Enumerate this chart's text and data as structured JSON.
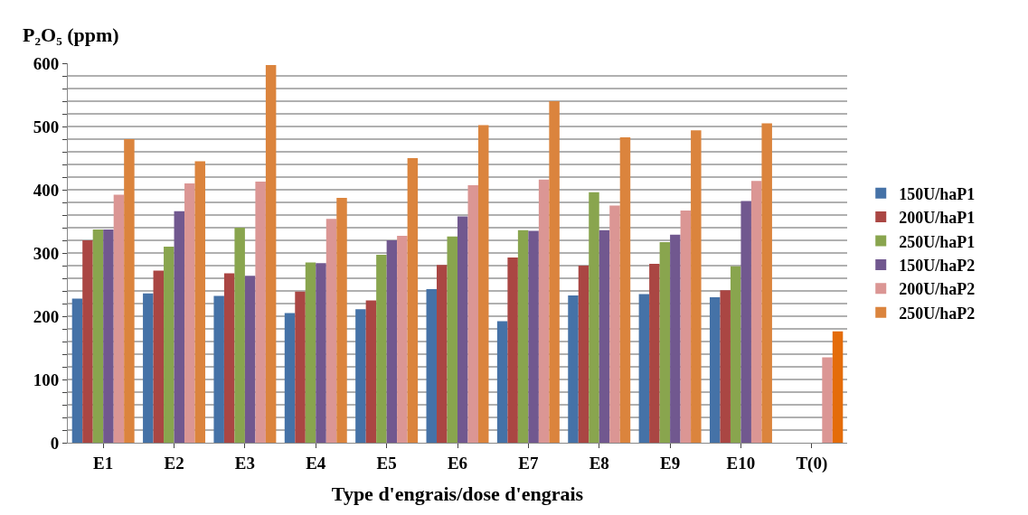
{
  "chart_data": {
    "type": "bar",
    "ylabel": "P₂O₅ (ppm)",
    "xlabel": "Type d'engrais/dose d'engrais",
    "categories": [
      "E1",
      "E2",
      "E3",
      "E4",
      "E5",
      "E6",
      "E7",
      "E8",
      "E9",
      "E10",
      "T(0)"
    ],
    "series": [
      {
        "name": "150U/haP1",
        "color": "#4572a7",
        "values": [
          228,
          236,
          232,
          205,
          211,
          243,
          192,
          233,
          235,
          230,
          null
        ]
      },
      {
        "name": "200U/haP1",
        "color": "#aa4643",
        "values": [
          320,
          272,
          268,
          239,
          225,
          281,
          293,
          280,
          283,
          241,
          null
        ]
      },
      {
        "name": "250U/haP1",
        "color": "#89a54e",
        "values": [
          337,
          310,
          340,
          285,
          297,
          326,
          336,
          396,
          317,
          279,
          null
        ]
      },
      {
        "name": "150U/haP2",
        "color": "#71588f",
        "values": [
          337,
          366,
          264,
          284,
          320,
          358,
          335,
          336,
          329,
          382,
          null
        ]
      },
      {
        "name": "200U/haP2",
        "color": "#db9694",
        "values": [
          392,
          410,
          413,
          354,
          327,
          407,
          416,
          375,
          367,
          414,
          135
        ]
      },
      {
        "name": "250U/haP2",
        "color": "#db843d",
        "colors": [
          null,
          null,
          null,
          null,
          null,
          null,
          null,
          null,
          null,
          null,
          "#e46c0a"
        ],
        "values": [
          480,
          445,
          597,
          387,
          450,
          502,
          540,
          483,
          494,
          505,
          176
        ]
      }
    ],
    "ylim": [
      0,
      600
    ],
    "yticks": [
      0,
      {
        "value": 20,
        "label": null
      },
      {
        "value": 40,
        "label": null
      },
      {
        "value": 60,
        "label": null
      },
      {
        "value": 80,
        "label": null
      },
      100,
      {
        "value": 120,
        "label": null
      },
      {
        "value": 140,
        "label": null
      },
      {
        "value": 160,
        "label": null
      },
      {
        "value": 180,
        "label": null
      },
      200,
      {
        "value": 220,
        "label": null
      },
      {
        "value": 240,
        "label": null
      },
      {
        "value": 260,
        "label": null
      },
      {
        "value": 280,
        "label": null
      },
      300,
      {
        "value": 320,
        "label": null
      },
      {
        "value": 340,
        "label": null
      },
      {
        "value": 360,
        "label": null
      },
      {
        "value": 380,
        "label": null
      },
      400,
      {
        "value": 420,
        "label": null
      },
      {
        "value": 440,
        "label": null
      },
      {
        "value": 460,
        "label": null
      },
      {
        "value": 480,
        "label": null
      },
      500,
      {
        "value": 520,
        "label": null
      },
      {
        "value": 540,
        "label": null
      },
      {
        "value": 560,
        "label": null
      },
      {
        "value": 580,
        "label": null
      },
      600
    ],
    "grid": "y",
    "legend": "right"
  }
}
